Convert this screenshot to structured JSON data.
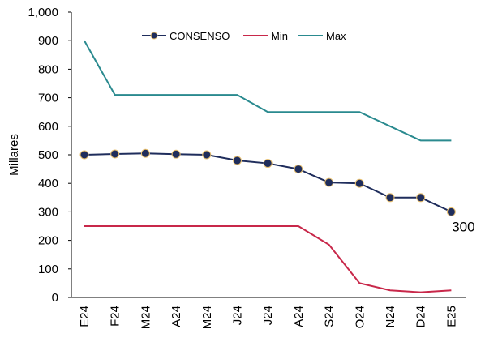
{
  "chart_data": {
    "type": "line",
    "y_label": "Millares",
    "categories": [
      "E24",
      "F24",
      "M24",
      "A24",
      "M24",
      "J24",
      "J24",
      "A24",
      "S24",
      "O24",
      "N24",
      "D24",
      "E25"
    ],
    "series": [
      {
        "name": "CONSENSO",
        "color": "#1f2d5c",
        "marker": true,
        "values": [
          500,
          503,
          505,
          502,
          500,
          480,
          470,
          450,
          403,
          400,
          350,
          350,
          300
        ]
      },
      {
        "name": "Min",
        "color": "#c8284a",
        "marker": false,
        "values": [
          250,
          250,
          250,
          250,
          250,
          250,
          250,
          250,
          185,
          50,
          25,
          18,
          25
        ]
      },
      {
        "name": "Max",
        "color": "#2a8a8f",
        "marker": false,
        "values": [
          900,
          710,
          710,
          710,
          710,
          710,
          650,
          650,
          650,
          650,
          600,
          550,
          550
        ]
      }
    ],
    "data_labels": "last",
    "ylim": [
      0,
      1000
    ],
    "yticks": [
      0,
      100,
      200,
      300,
      400,
      500,
      600,
      700,
      800,
      900,
      {
        "value": 1000,
        "label": "1,000"
      }
    ],
    "grid": false,
    "legend": "top"
  }
}
